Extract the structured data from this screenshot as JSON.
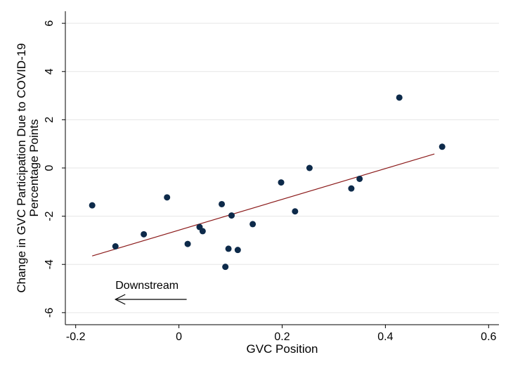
{
  "chart_data": {
    "type": "scatter",
    "title": "",
    "xlabel": "GVC Position",
    "ylabel_lines": [
      "Change in GVC Participation Due to COVID-19",
      "Percentage Points"
    ],
    "xlim": [
      -0.22,
      0.62
    ],
    "ylim": [
      -6.5,
      6.5
    ],
    "xticks": [
      -0.2,
      0,
      0.2,
      0.4,
      0.6
    ],
    "xtick_labels": [
      "-0.2",
      "0",
      "0.2",
      "0.4",
      "0.6"
    ],
    "yticks": [
      -6,
      -4,
      -2,
      0,
      2,
      4,
      6
    ],
    "ytick_labels": [
      "-6",
      "-4",
      "-2",
      "0",
      "2",
      "4",
      "6"
    ],
    "grid": "horizontal",
    "points": [
      {
        "x": -0.168,
        "y": -1.55
      },
      {
        "x": -0.123,
        "y": -3.25
      },
      {
        "x": -0.068,
        "y": -2.75
      },
      {
        "x": -0.023,
        "y": -1.22
      },
      {
        "x": 0.017,
        "y": -3.15
      },
      {
        "x": 0.04,
        "y": -2.45
      },
      {
        "x": 0.046,
        "y": -2.62
      },
      {
        "x": 0.083,
        "y": -1.5
      },
      {
        "x": 0.09,
        "y": -4.1
      },
      {
        "x": 0.096,
        "y": -3.35
      },
      {
        "x": 0.102,
        "y": -1.97
      },
      {
        "x": 0.114,
        "y": -3.4
      },
      {
        "x": 0.143,
        "y": -2.33
      },
      {
        "x": 0.198,
        "y": -0.6
      },
      {
        "x": 0.225,
        "y": -1.8
      },
      {
        "x": 0.253,
        "y": 0.0
      },
      {
        "x": 0.334,
        "y": -0.85
      },
      {
        "x": 0.35,
        "y": -0.45
      },
      {
        "x": 0.427,
        "y": 2.92
      },
      {
        "x": 0.51,
        "y": 0.88
      }
    ],
    "fit_line": {
      "x": [
        -0.168,
        0.495
      ],
      "y": [
        -3.65,
        0.58
      ]
    },
    "annotation": {
      "text": "Downstream",
      "arrow_from_x": 0.015,
      "arrow_to_x": -0.123,
      "arrow_y": -5.45
    },
    "colors": {
      "points": "#0d2a4a",
      "fit_line": "#8b1a1a",
      "grid": "#e6e6e6"
    }
  }
}
